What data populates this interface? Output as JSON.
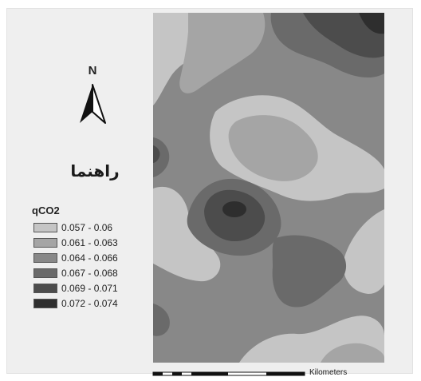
{
  "north": {
    "label": "N",
    "icon": "north-arrow-icon"
  },
  "legend": {
    "title": "راهنما",
    "layer": "qCO2",
    "classes": [
      {
        "label": "0.057 - 0.06",
        "color": "#c5c5c5"
      },
      {
        "label": "0.061 - 0.063",
        "color": "#a5a5a5"
      },
      {
        "label": "0.064 - 0.066",
        "color": "#888888"
      },
      {
        "label": "0.067 - 0.068",
        "color": "#6a6a6a"
      },
      {
        "label": "0.069 - 0.071",
        "color": "#4c4c4c"
      },
      {
        "label": "0.072 - 0.074",
        "color": "#2e2e2e"
      }
    ]
  },
  "scale_bar": {
    "unit": "Kilometers"
  }
}
